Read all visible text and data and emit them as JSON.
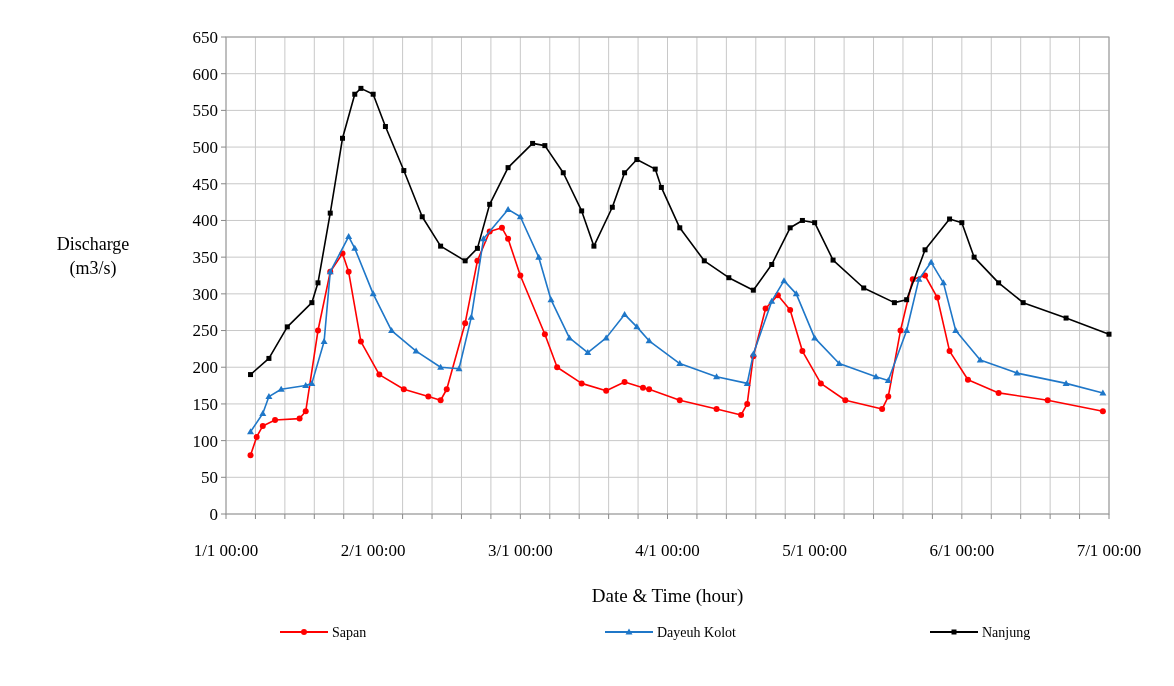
{
  "chart_data": {
    "type": "line",
    "xlabel": "Date & Time (hour)",
    "ylabel": "Discharge\n(m3/s)",
    "xlim": [
      "--01-01T00:00",
      "--01-07T00:00"
    ],
    "ylim": [
      0,
      650
    ],
    "xticks": [
      {
        "value": "--01-01T00:00",
        "label": "1/1 00:00"
      },
      {
        "value": "--01-01T04:48",
        "label": null
      },
      {
        "value": "--01-01T09:36",
        "label": null
      },
      {
        "value": "--01-01T14:24",
        "label": null
      },
      {
        "value": "--01-01T19:12",
        "label": null
      },
      {
        "value": "--01-02T00:00",
        "label": "2/1 00:00"
      },
      {
        "value": "--01-02T04:48",
        "label": null
      },
      {
        "value": "--01-02T09:36",
        "label": null
      },
      {
        "value": "--01-02T14:24",
        "label": null
      },
      {
        "value": "--01-02T19:12",
        "label": null
      },
      {
        "value": "--01-03T00:00",
        "label": "3/1 00:00"
      },
      {
        "value": "--01-03T04:48",
        "label": null
      },
      {
        "value": "--01-03T09:36",
        "label": null
      },
      {
        "value": "--01-03T14:24",
        "label": null
      },
      {
        "value": "--01-03T19:12",
        "label": null
      },
      {
        "value": "--01-04T00:00",
        "label": "4/1 00:00"
      },
      {
        "value": "--01-04T04:48",
        "label": null
      },
      {
        "value": "--01-04T09:36",
        "label": null
      },
      {
        "value": "--01-04T14:24",
        "label": null
      },
      {
        "value": "--01-04T19:12",
        "label": null
      },
      {
        "value": "--01-05T00:00",
        "label": "5/1 00:00"
      },
      {
        "value": "--01-05T04:48",
        "label": null
      },
      {
        "value": "--01-05T09:36",
        "label": null
      },
      {
        "value": "--01-05T14:24",
        "label": null
      },
      {
        "value": "--01-05T19:12",
        "label": null
      },
      {
        "value": "--01-06T00:00",
        "label": "6/1 00:00"
      },
      {
        "value": "--01-06T04:48",
        "label": null
      },
      {
        "value": "--01-06T09:36",
        "label": null
      },
      {
        "value": "--01-06T14:24",
        "label": null
      },
      {
        "value": "--01-06T19:12",
        "label": null
      },
      {
        "value": "--01-07T00:00",
        "label": "7/1 00:00"
      }
    ],
    "yticks": [
      0,
      50,
      100,
      150,
      200,
      250,
      300,
      350,
      400,
      450,
      500,
      550,
      600,
      650
    ],
    "grid": true,
    "legend": "bottom",
    "line_style": "solid",
    "series": [
      {
        "name": "Sapan",
        "color": "#ff0000",
        "marker": "circle",
        "x": [
          "--01-01T04:00",
          "--01-01T05:00",
          "--01-01T06:00",
          "--01-01T08:00",
          "--01-01T12:00",
          "--01-01T13:00",
          "--01-01T15:00",
          "--01-01T17:00",
          "--01-01T19:00",
          "--01-01T20:00",
          "--01-01T22:00",
          "--01-02T01:00",
          "--01-02T05:00",
          "--01-02T09:00",
          "--01-02T11:00",
          "--01-02T12:00",
          "--01-02T15:00",
          "--01-02T17:00",
          "--01-02T19:00",
          "--01-02T21:00",
          "--01-02T22:00",
          "--01-03T00:00",
          "--01-03T04:00",
          "--01-03T06:00",
          "--01-03T10:00",
          "--01-03T14:00",
          "--01-03T17:00",
          "--01-03T20:00",
          "--01-03T21:00",
          "--01-04T02:00",
          "--01-04T08:00",
          "--01-04T12:00",
          "--01-04T13:00",
          "--01-04T14:00",
          "--01-04T16:00",
          "--01-04T18:00",
          "--01-04T20:00",
          "--01-04T22:00",
          "--01-05T01:00",
          "--01-05T05:00",
          "--01-05T11:00",
          "--01-05T12:00",
          "--01-05T14:00",
          "--01-05T16:00",
          "--01-05T18:00",
          "--01-05T20:00",
          "--01-05T22:00",
          "--01-06T01:00",
          "--01-06T06:00",
          "--01-06T14:00",
          "--01-06T23:00"
        ],
        "values": [
          80,
          105,
          120,
          128,
          130,
          140,
          250,
          330,
          355,
          330,
          235,
          190,
          170,
          160,
          155,
          170,
          260,
          345,
          385,
          390,
          375,
          325,
          245,
          200,
          178,
          168,
          180,
          172,
          170,
          155,
          143,
          135,
          150,
          215,
          280,
          298,
          278,
          222,
          178,
          155,
          143,
          160,
          250,
          320,
          325,
          295,
          222,
          183,
          165,
          155,
          140
        ]
      },
      {
        "name": "Dayeuh Kolot",
        "color": "#1f77c8",
        "marker": "triangle",
        "x": [
          "--01-01T04:00",
          "--01-01T06:00",
          "--01-01T07:00",
          "--01-01T09:00",
          "--01-01T13:00",
          "--01-01T14:00",
          "--01-01T16:00",
          "--01-01T17:00",
          "--01-01T20:00",
          "--01-01T21:00",
          "--01-02T00:00",
          "--01-02T03:00",
          "--01-02T07:00",
          "--01-02T11:00",
          "--01-02T14:00",
          "--01-02T16:00",
          "--01-02T18:00",
          "--01-02T22:00",
          "--01-03T00:00",
          "--01-03T03:00",
          "--01-03T05:00",
          "--01-03T08:00",
          "--01-03T11:00",
          "--01-03T14:00",
          "--01-03T17:00",
          "--01-03T19:00",
          "--01-03T21:00",
          "--01-04T02:00",
          "--01-04T08:00",
          "--01-04T13:00",
          "--01-04T14:00",
          "--01-04T17:00",
          "--01-04T19:00",
          "--01-04T21:00",
          "--01-05T00:00",
          "--01-05T04:00",
          "--01-05T10:00",
          "--01-05T12:00",
          "--01-05T15:00",
          "--01-05T17:00",
          "--01-05T19:00",
          "--01-05T21:00",
          "--01-05T23:00",
          "--01-06T03:00",
          "--01-06T09:00",
          "--01-06T17:00",
          "--01-06T23:00"
        ],
        "values": [
          112,
          137,
          160,
          170,
          175,
          178,
          235,
          330,
          378,
          362,
          300,
          250,
          222,
          200,
          198,
          268,
          375,
          415,
          405,
          350,
          292,
          240,
          220,
          240,
          272,
          255,
          236,
          205,
          187,
          178,
          218,
          290,
          318,
          300,
          240,
          205,
          187,
          182,
          250,
          320,
          343,
          315,
          250,
          210,
          192,
          178,
          165
        ]
      },
      {
        "name": "Nanjung",
        "color": "#000000",
        "marker": "square",
        "x": [
          "--01-01T04:00",
          "--01-01T07:00",
          "--01-01T10:00",
          "--01-01T14:00",
          "--01-01T15:00",
          "--01-01T17:00",
          "--01-01T19:00",
          "--01-01T21:00",
          "--01-01T22:00",
          "--01-02T00:00",
          "--01-02T02:00",
          "--01-02T05:00",
          "--01-02T08:00",
          "--01-02T11:00",
          "--01-02T15:00",
          "--01-02T17:00",
          "--01-02T19:00",
          "--01-02T22:00",
          "--01-03T02:00",
          "--01-03T04:00",
          "--01-03T07:00",
          "--01-03T10:00",
          "--01-03T12:00",
          "--01-03T15:00",
          "--01-03T17:00",
          "--01-03T19:00",
          "--01-03T22:00",
          "--01-03T23:00",
          "--01-04T02:00",
          "--01-04T06:00",
          "--01-04T10:00",
          "--01-04T14:00",
          "--01-04T17:00",
          "--01-04T20:00",
          "--01-04T22:00",
          "--01-05T00:00",
          "--01-05T03:00",
          "--01-05T08:00",
          "--01-05T13:00",
          "--01-05T15:00",
          "--01-05T18:00",
          "--01-05T22:00",
          "--01-06T00:00",
          "--01-06T02:00",
          "--01-06T06:00",
          "--01-06T10:00",
          "--01-06T17:00",
          "--01-07T00:00"
        ],
        "values": [
          190,
          212,
          255,
          288,
          315,
          410,
          512,
          572,
          580,
          572,
          528,
          468,
          405,
          365,
          345,
          362,
          422,
          472,
          505,
          502,
          465,
          413,
          365,
          418,
          465,
          483,
          470,
          445,
          390,
          345,
          322,
          305,
          340,
          390,
          400,
          397,
          346,
          308,
          288,
          292,
          360,
          402,
          397,
          350,
          315,
          288,
          267,
          245
        ]
      }
    ]
  }
}
